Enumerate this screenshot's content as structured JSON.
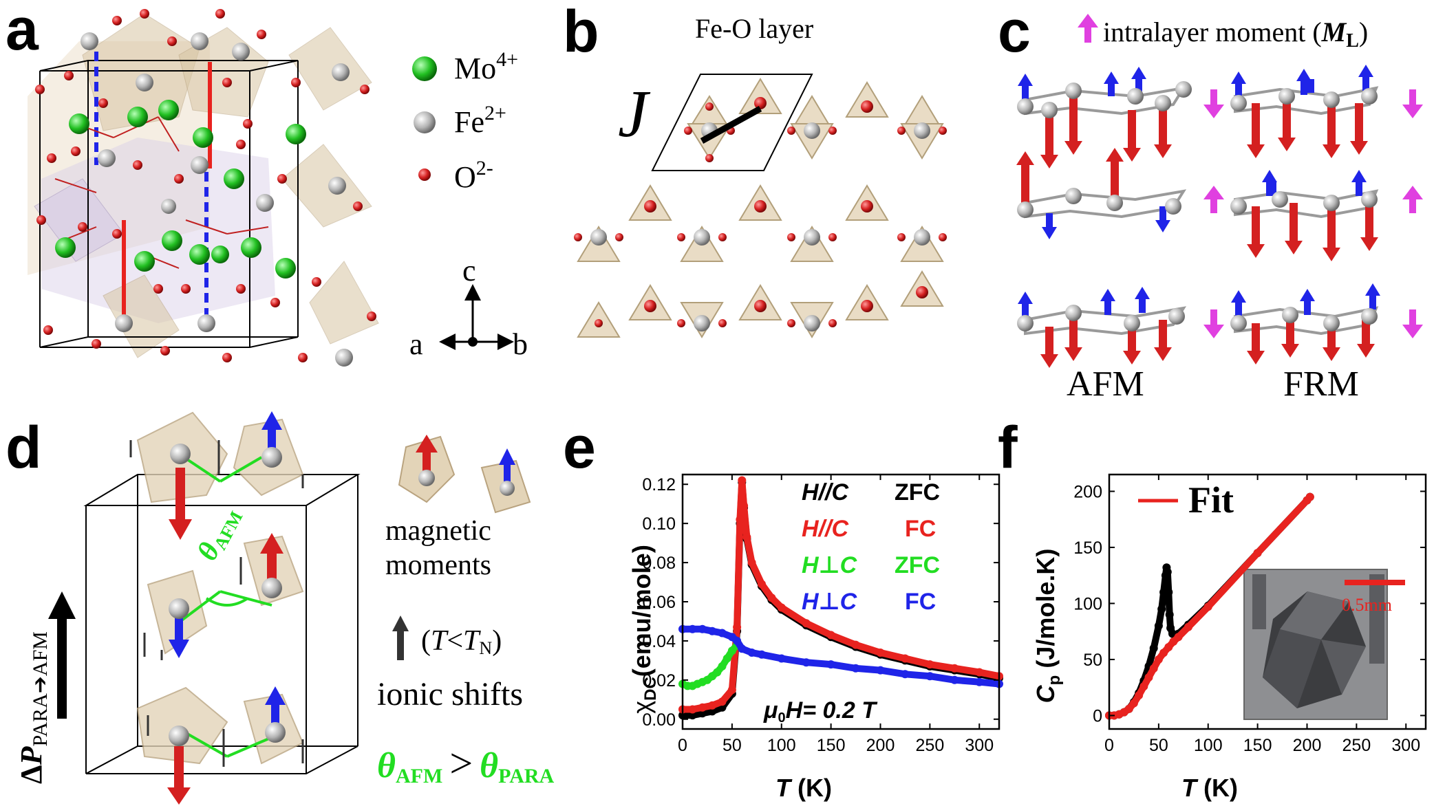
{
  "panels": {
    "a": {
      "label": "a",
      "legend": [
        {
          "ion": "Mo",
          "charge": "4+",
          "color": "#22c022"
        },
        {
          "ion": "Fe",
          "charge": "2+",
          "color": "#b5b5b5"
        },
        {
          "ion": "O",
          "charge": "2-",
          "color": "#d42020"
        }
      ],
      "axes": {
        "c": "c",
        "a": "a",
        "b": "b"
      }
    },
    "b": {
      "label": "b",
      "title": "Fe-O layer",
      "coupling": "J"
    },
    "c": {
      "label": "c",
      "legend_text": "intralayer moment (",
      "legend_symbol": "M",
      "legend_sub": "L",
      "legend_close": ")",
      "col_labels": [
        "AFM",
        "FRM"
      ]
    },
    "d": {
      "label": "d",
      "theta_afm_symbol": "θ",
      "theta_afm_sub": "AFM",
      "moments_caption": [
        "magnetic",
        "moments"
      ],
      "shift_condition_open": "(",
      "shift_condition_T": "T",
      "shift_condition_lt": "<",
      "shift_condition_TN": "T",
      "shift_condition_N": "N",
      "shift_condition_close": ")",
      "ionic_caption": "ionic shifts",
      "relation_left": "θ",
      "relation_left_sub": "AFM",
      "relation_op": ">",
      "relation_right": "θ",
      "relation_right_sub": "PARA",
      "polarization_delta": "Δ",
      "polarization_P": "P",
      "polarization_sub": "PARA",
      "polarization_arrow": "➔",
      "polarization_to": "AFM"
    },
    "e": {
      "label": "e"
    },
    "f": {
      "label": "f"
    }
  },
  "chart_data": [
    {
      "panel": "e",
      "type": "scatter",
      "xlabel_symbol": "T",
      "xlabel_unit": " (K)",
      "ylabel_symbol": "χ",
      "ylabel_sub": "DC",
      "ylabel_unit": "(emu/mole)",
      "xlim": [
        0,
        320
      ],
      "ylim": [
        -0.005,
        0.125
      ],
      "xticks": [
        0,
        50,
        100,
        150,
        200,
        250,
        300
      ],
      "yticks": [
        0.0,
        0.02,
        0.04,
        0.06,
        0.08,
        0.1,
        0.12
      ],
      "annotation": "μ",
      "annotation_sub": "0",
      "annotation_rest": "H= 0.2 T",
      "legend": [
        {
          "field": "H//C",
          "mode": "ZFC",
          "color": "#000000"
        },
        {
          "field": "H//C",
          "mode": "FC",
          "color": "#e8231f"
        },
        {
          "field": "H⊥C",
          "mode": "ZFC",
          "color": "#22dd22"
        },
        {
          "field": "H⊥C",
          "mode": "FC",
          "color": "#1f24e8"
        }
      ],
      "series": [
        {
          "name": "H//C ZFC",
          "color": "#000000",
          "x": [
            0,
            10,
            20,
            30,
            40,
            50,
            55,
            58,
            60,
            62,
            65,
            70,
            80,
            90,
            100,
            125,
            150,
            175,
            200,
            225,
            250,
            275,
            300,
            320
          ],
          "y": [
            0.002,
            0.002,
            0.003,
            0.004,
            0.006,
            0.013,
            0.045,
            0.1,
            0.121,
            0.108,
            0.092,
            0.079,
            0.068,
            0.061,
            0.056,
            0.048,
            0.042,
            0.037,
            0.033,
            0.03,
            0.027,
            0.025,
            0.023,
            0.021
          ]
        },
        {
          "name": "H//C FC",
          "color": "#e8231f",
          "x": [
            0,
            10,
            20,
            30,
            40,
            50,
            55,
            58,
            60,
            62,
            65,
            70,
            80,
            90,
            100,
            125,
            150,
            175,
            200,
            225,
            250,
            275,
            300,
            320
          ],
          "y": [
            0.005,
            0.005,
            0.006,
            0.007,
            0.009,
            0.015,
            0.047,
            0.102,
            0.122,
            0.109,
            0.093,
            0.08,
            0.069,
            0.062,
            0.057,
            0.049,
            0.043,
            0.038,
            0.034,
            0.031,
            0.028,
            0.026,
            0.024,
            0.022
          ]
        },
        {
          "name": "H⊥C ZFC",
          "color": "#22dd22",
          "x": [
            0,
            5,
            10,
            15,
            20,
            25,
            30,
            35,
            40,
            45,
            50,
            55
          ],
          "y": [
            0.018,
            0.017,
            0.017,
            0.018,
            0.019,
            0.02,
            0.022,
            0.024,
            0.027,
            0.031,
            0.035,
            0.038
          ]
        },
        {
          "name": "H⊥C FC",
          "color": "#1f24e8",
          "x": [
            0,
            10,
            20,
            30,
            40,
            50,
            55,
            60,
            70,
            80,
            100,
            125,
            150,
            175,
            200,
            225,
            250,
            275,
            300,
            320
          ],
          "y": [
            0.046,
            0.046,
            0.046,
            0.045,
            0.044,
            0.042,
            0.04,
            0.036,
            0.034,
            0.033,
            0.031,
            0.029,
            0.028,
            0.026,
            0.025,
            0.023,
            0.022,
            0.02,
            0.019,
            0.018
          ]
        }
      ]
    },
    {
      "panel": "f",
      "type": "scatter",
      "xlabel_symbol": "T",
      "xlabel_unit": " (K)",
      "ylabel_symbol": "C",
      "ylabel_sub": "p",
      "ylabel_unit": " (J/mole.K)",
      "xlim": [
        0,
        320
      ],
      "ylim": [
        -12,
        215
      ],
      "xticks": [
        0,
        50,
        100,
        150,
        200,
        250,
        300
      ],
      "yticks": [
        0,
        50,
        100,
        150,
        200
      ],
      "legend": [
        {
          "name": "Fit",
          "color": "#e8231f"
        }
      ],
      "inset_scale": "0.5mm",
      "series": [
        {
          "name": "data",
          "color": "#000000",
          "x": [
            0,
            5,
            10,
            15,
            20,
            25,
            30,
            35,
            40,
            45,
            50,
            53,
            55,
            57,
            58,
            59,
            60,
            61,
            62,
            64,
            66,
            70,
            80,
            100,
            150,
            200,
            203
          ],
          "y": [
            0,
            0,
            1,
            3,
            6,
            12,
            20,
            31,
            44,
            60,
            80,
            95,
            110,
            125,
            132,
            128,
            110,
            90,
            78,
            73,
            72,
            73,
            81,
            98,
            145,
            192,
            195
          ]
        },
        {
          "name": "Fit",
          "color": "#e8231f",
          "x": [
            0,
            5,
            10,
            15,
            20,
            25,
            30,
            35,
            40,
            45,
            50,
            55,
            60,
            65,
            70,
            80,
            100,
            150,
            200,
            203
          ],
          "y": [
            0,
            0,
            1,
            3,
            6,
            11,
            18,
            26,
            34,
            42,
            50,
            56,
            61,
            66,
            70,
            79,
            97,
            145,
            192,
            195
          ]
        }
      ]
    }
  ]
}
